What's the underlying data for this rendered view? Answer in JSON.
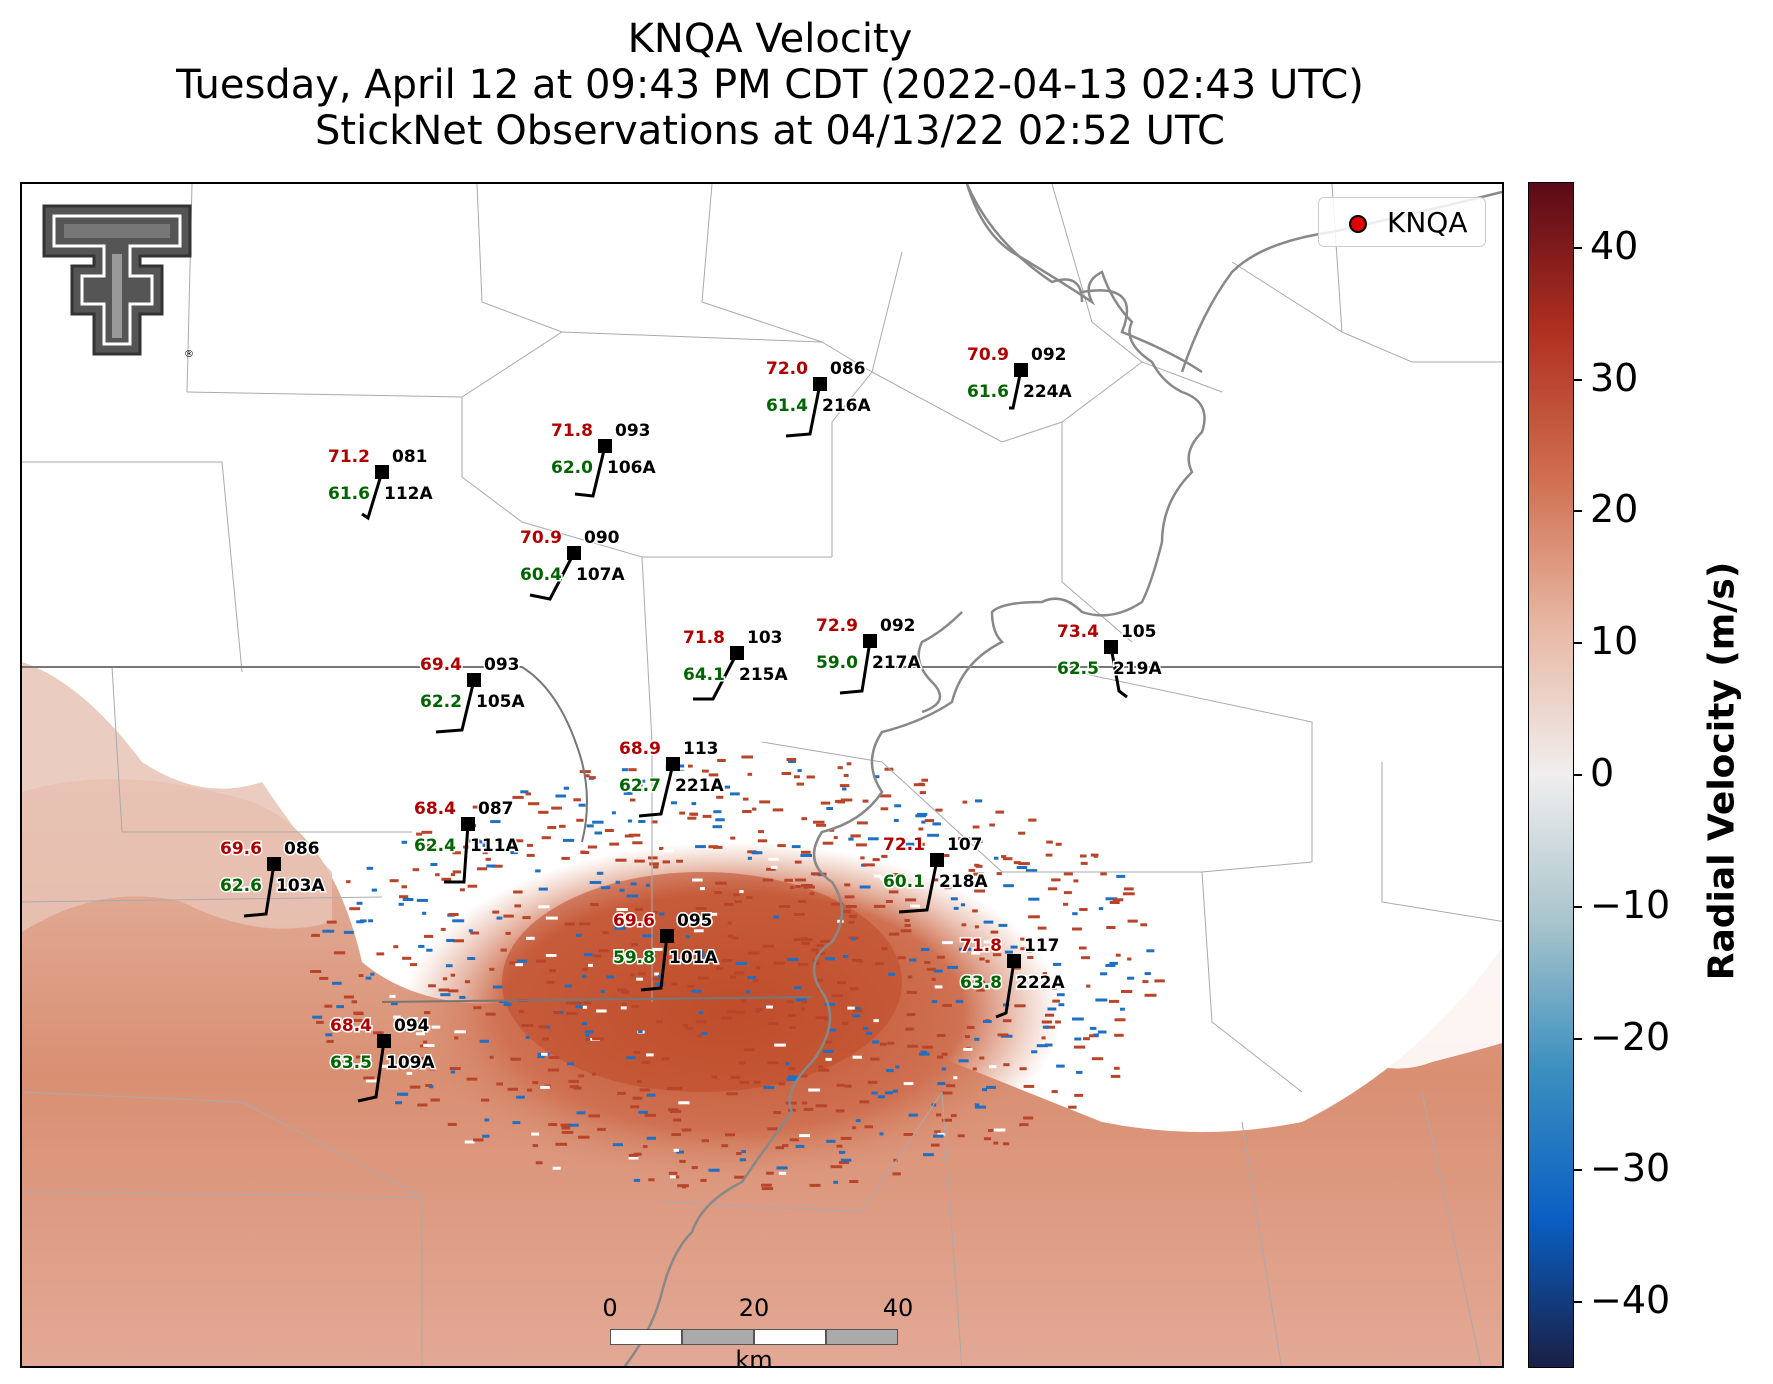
{
  "title_lines": [
    "KNQA Velocity",
    "Tuesday, April 12 at 09:43 PM CDT (2022-04-13 02:43 UTC)",
    "StickNet Observations at 04/13/22 02:52 UTC"
  ],
  "legend": {
    "label": "KNQA",
    "marker_color": "#e00000"
  },
  "colorbar": {
    "title": "Radial Velocity (m/s)",
    "range": [
      -45,
      45
    ],
    "ticks": [
      "40",
      "30",
      "20",
      "10",
      "0",
      "−10",
      "−20",
      "−30",
      "−40"
    ],
    "colors": [
      "#1a1f45",
      "#0a5fc4",
      "#3a8fbf",
      "#a8c4cc",
      "#f0eeee",
      "#e8b8a4",
      "#d06f50",
      "#b03020",
      "#5a0a18"
    ]
  },
  "scale_bar": {
    "ticks": [
      "0",
      "20",
      "40"
    ],
    "unit": "km"
  },
  "logo": {
    "name": "Texas Tech Double T",
    "mark": "®"
  },
  "stations": [
    {
      "id": "112A",
      "temp": "71.2",
      "dew": "61.6",
      "dir": "081"
    },
    {
      "id": "106A",
      "temp": "71.8",
      "dew": "62.0",
      "dir": "093"
    },
    {
      "id": "216A",
      "temp": "72.0",
      "dew": "61.4",
      "dir": "086"
    },
    {
      "id": "224A",
      "temp": "70.9",
      "dew": "61.6",
      "dir": "092"
    },
    {
      "id": "107A",
      "temp": "70.9",
      "dew": "60.4",
      "dir": "090"
    },
    {
      "id": "215A",
      "temp": "71.8",
      "dew": "64.1",
      "dir": "103"
    },
    {
      "id": "217A",
      "temp": "72.9",
      "dew": "59.0",
      "dir": "092"
    },
    {
      "id": "219A",
      "temp": "73.4",
      "dew": "62.5",
      "dir": "105"
    },
    {
      "id": "105A",
      "temp": "69.4",
      "dew": "62.2",
      "dir": "093"
    },
    {
      "id": "221A",
      "temp": "68.9",
      "dew": "62.7",
      "dir": "113"
    },
    {
      "id": "111A",
      "temp": "68.4",
      "dew": "62.4",
      "dir": "087"
    },
    {
      "id": "103A",
      "temp": "69.6",
      "dew": "62.6",
      "dir": "086"
    },
    {
      "id": "218A",
      "temp": "72.1",
      "dew": "60.1",
      "dir": "107"
    },
    {
      "id": "101A",
      "temp": "69.6",
      "dew": "59.8",
      "dir": "095"
    },
    {
      "id": "222A",
      "temp": "71.8",
      "dew": "63.8",
      "dir": "117"
    },
    {
      "id": "109A",
      "temp": "68.4",
      "dew": "63.5",
      "dir": "094"
    }
  ],
  "colors": {
    "temp": "#b00000",
    "dew": "#006400",
    "id": "#000000",
    "border": "#777777",
    "county": "#aaaaaa",
    "river": "#888888"
  }
}
